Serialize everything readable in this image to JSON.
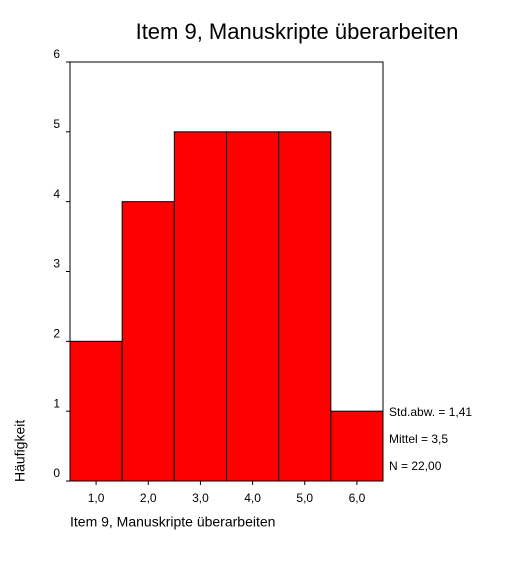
{
  "chart_data": {
    "type": "histogram",
    "title": "Item 9, Manuskripte überarbeiten",
    "xlabel": "Item 9, Manuskripte überarbeiten",
    "ylabel": "Häufigkeit",
    "bins": [
      0.5,
      1.5,
      2.5,
      3.5,
      4.5,
      5.5,
      6.5
    ],
    "values": [
      2,
      4,
      5,
      5,
      5,
      1
    ],
    "color": "#ff0000",
    "xlim": [
      0.5,
      6.5
    ],
    "xticks": [
      {
        "value": 1,
        "label": "1,0"
      },
      {
        "value": 2,
        "label": "2,0"
      },
      {
        "value": 3,
        "label": "3,0"
      },
      {
        "value": 4,
        "label": "4,0"
      },
      {
        "value": 5,
        "label": "5,0"
      },
      {
        "value": 6,
        "label": "6,0"
      }
    ],
    "ylim": [
      0,
      6
    ],
    "yticks": [
      0,
      1,
      2,
      3,
      4,
      5,
      6
    ],
    "annotations": [
      "Std.abw. = 1,41",
      "Mittel = 3,5",
      "N = 22,00"
    ]
  }
}
